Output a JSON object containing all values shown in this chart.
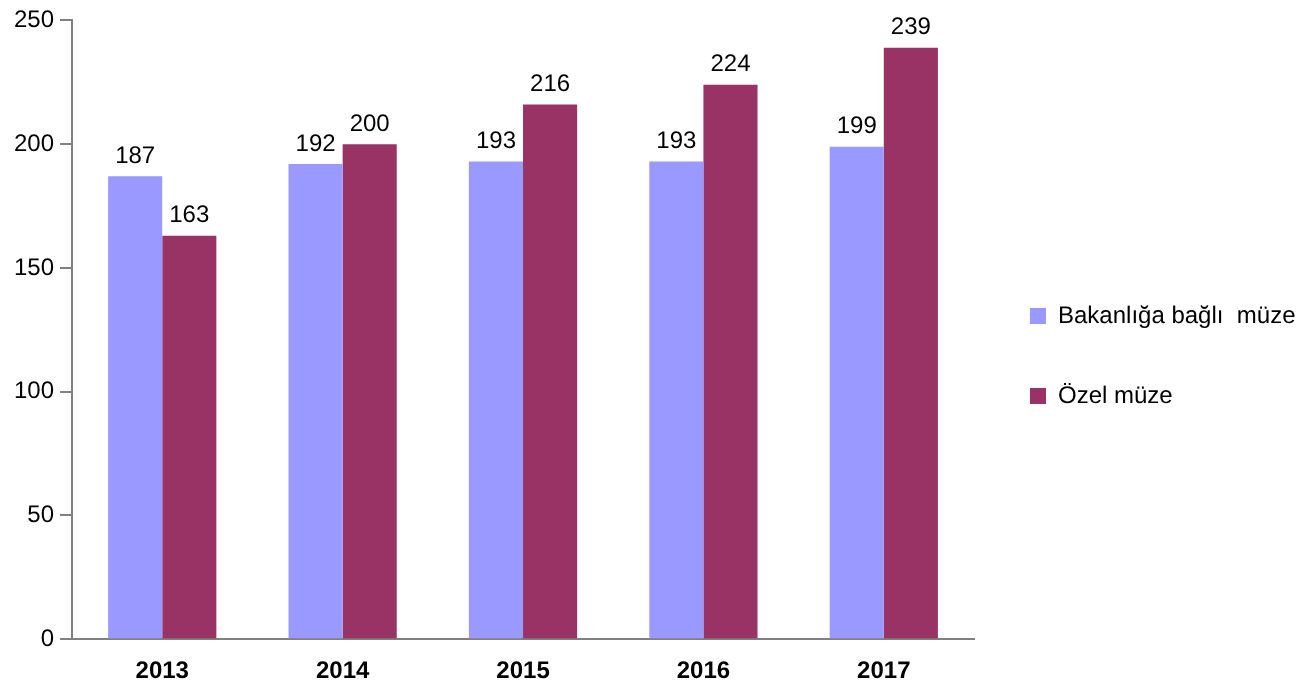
{
  "chart_data": {
    "type": "bar",
    "categories": [
      "2013",
      "2014",
      "2015",
      "2016",
      "2017"
    ],
    "series": [
      {
        "name": "Bakanlığa bağlı  müze",
        "color": "#9999ff",
        "values": [
          187,
          192,
          193,
          193,
          199
        ]
      },
      {
        "name": "Özel müze",
        "color": "#993366",
        "values": [
          163,
          200,
          216,
          224,
          239
        ]
      }
    ],
    "ylim": [
      0,
      250
    ],
    "yticks": [
      0,
      50,
      100,
      150,
      200,
      250
    ],
    "grid": false,
    "legend": "right",
    "data_labels": true
  }
}
